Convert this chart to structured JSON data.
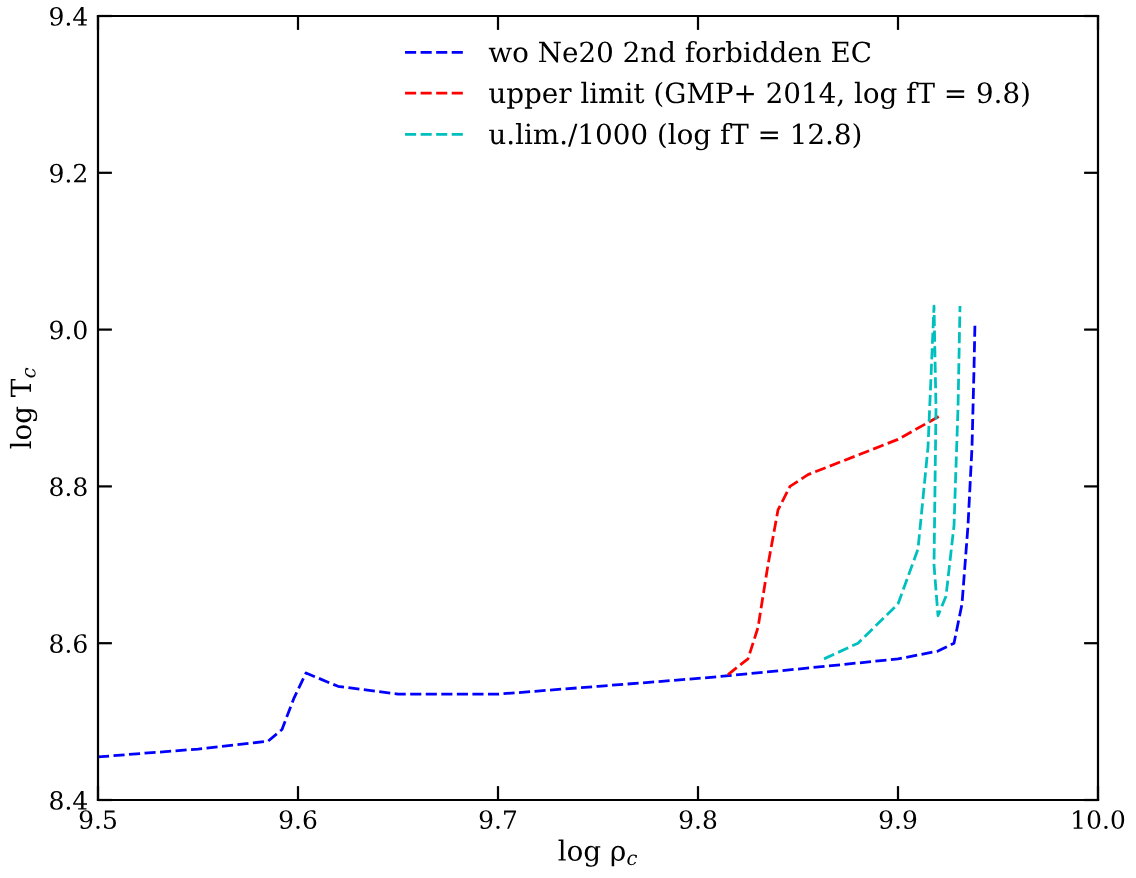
{
  "chart_data": {
    "type": "line",
    "xlabel": "log ρ$_{c}$",
    "ylabel": "log T$_{c}$",
    "xlim": [
      9.5,
      10.0
    ],
    "ylim": [
      8.4,
      9.4
    ],
    "xticks": [
      9.5,
      9.6,
      9.7,
      9.8,
      9.9,
      {
        "value": 10.0,
        "label": "10.0"
      }
    ],
    "yticks": [
      8.4,
      8.6,
      8.8,
      {
        "value": 9.0,
        "label": "9.0"
      },
      9.2,
      9.4
    ],
    "legend": "top",
    "line_style": "dashed",
    "marker": "none",
    "series": [
      {
        "name": "wo Ne20 2nd forbidden EC",
        "color": "#0000ff",
        "x": [
          9.5,
          9.55,
          9.585,
          9.592,
          9.598,
          9.604,
          9.62,
          9.65,
          9.7,
          9.75,
          9.8,
          9.85,
          9.9,
          9.92,
          9.928,
          9.932,
          9.935,
          9.937,
          9.938,
          9.9385
        ],
        "values": [
          8.455,
          8.465,
          8.475,
          8.49,
          8.53,
          8.562,
          8.545,
          8.535,
          8.535,
          8.545,
          8.555,
          8.567,
          8.58,
          8.59,
          8.6,
          8.65,
          8.75,
          8.85,
          8.95,
          9.01
        ]
      },
      {
        "name": "upper limit (GMP+ 2014, log fT = 9.8)",
        "color": "#ff0000",
        "x": [
          9.815,
          9.825,
          9.83,
          9.835,
          9.84,
          9.846,
          9.855,
          9.88,
          9.9,
          9.921
        ],
        "values": [
          8.56,
          8.58,
          8.62,
          8.7,
          8.77,
          8.8,
          8.815,
          8.84,
          8.86,
          8.89
        ]
      },
      {
        "name": "u.lim./1000 (log fT = 12.8)",
        "color": "#00bfbf",
        "x": [
          9.863,
          9.88,
          9.9,
          9.91,
          9.915,
          9.918,
          9.919,
          9.918,
          9.92,
          9.924,
          9.928,
          9.93,
          9.931
        ],
        "values": [
          8.58,
          8.6,
          8.65,
          8.72,
          8.85,
          9.03,
          8.9,
          8.7,
          8.635,
          8.66,
          8.75,
          8.9,
          9.03
        ]
      }
    ]
  }
}
